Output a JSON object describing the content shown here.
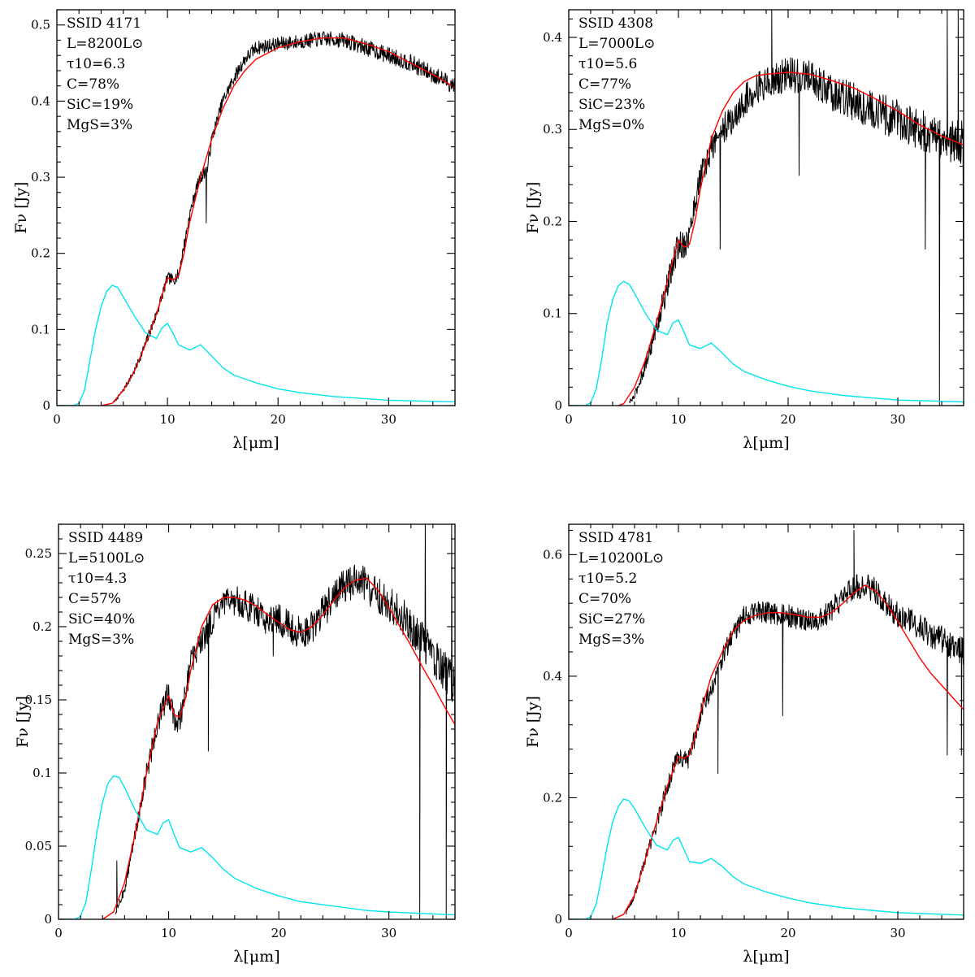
{
  "chart_data": [
    {
      "type": "line",
      "panel": "top-left",
      "xlabel": "λ[μm]",
      "ylabel": "Fν [Jy]",
      "xlim": [
        0,
        36
      ],
      "ylim": [
        0,
        0.52
      ],
      "xticks": [
        0,
        10,
        20,
        30
      ],
      "yticks": [
        0,
        0.1,
        0.2,
        0.3,
        0.4,
        0.5
      ],
      "ytick_labels": [
        "0",
        "0.1",
        "0.2",
        "0.3",
        "0.4",
        "0.5"
      ],
      "annotations": [
        "SSID 4171",
        "L=8200L⊙",
        "τ10=6.3",
        "C=78%",
        "SiC=19%",
        "MgS=3%"
      ],
      "series": [
        {
          "color": "#000000",
          "noise": 0.006,
          "spikes": [
            [
              13.5,
              0.24
            ]
          ],
          "x": [
            5.2,
            6,
            7,
            8,
            9,
            10,
            10.5,
            11,
            11.5,
            12,
            12.5,
            13,
            13.3,
            13.6,
            14,
            15,
            16,
            17,
            18,
            20,
            22,
            24,
            26,
            28,
            30,
            32,
            34,
            36
          ],
          "y": [
            0.005,
            0.02,
            0.045,
            0.08,
            0.12,
            0.168,
            0.165,
            0.172,
            0.21,
            0.25,
            0.28,
            0.3,
            0.305,
            0.31,
            0.35,
            0.4,
            0.43,
            0.455,
            0.47,
            0.475,
            0.478,
            0.482,
            0.48,
            0.47,
            0.46,
            0.45,
            0.435,
            0.42
          ]
        },
        {
          "color": "#ff0000",
          "noise": 0,
          "x": [
            4,
            5,
            6,
            7,
            8,
            9,
            10,
            10.5,
            11,
            11.5,
            12,
            13,
            14,
            15,
            16,
            17,
            18,
            20,
            22,
            24,
            26,
            28,
            30,
            32,
            34,
            36
          ],
          "y": [
            0,
            0.003,
            0.02,
            0.045,
            0.08,
            0.12,
            0.168,
            0.165,
            0.17,
            0.2,
            0.24,
            0.3,
            0.35,
            0.39,
            0.42,
            0.44,
            0.455,
            0.47,
            0.478,
            0.483,
            0.483,
            0.475,
            0.465,
            0.45,
            0.435,
            0.418
          ]
        },
        {
          "color": "#00e5ee",
          "noise": 0,
          "x": [
            0,
            1.5,
            2,
            2.5,
            3,
            3.5,
            4,
            4.5,
            5,
            5.5,
            6,
            7,
            8,
            9,
            9.5,
            10,
            10.5,
            11,
            12,
            13,
            14,
            15,
            16,
            18,
            20,
            22,
            25,
            28,
            30,
            33,
            36
          ],
          "y": [
            0,
            0,
            0.003,
            0.02,
            0.06,
            0.1,
            0.13,
            0.15,
            0.158,
            0.155,
            0.143,
            0.118,
            0.096,
            0.088,
            0.102,
            0.108,
            0.095,
            0.08,
            0.073,
            0.08,
            0.065,
            0.05,
            0.04,
            0.03,
            0.022,
            0.017,
            0.012,
            0.009,
            0.007,
            0.006,
            0.005
          ]
        }
      ]
    },
    {
      "type": "line",
      "panel": "top-right",
      "xlabel": "λ[μm]",
      "ylabel": "Fν [Jy]",
      "xlim": [
        0,
        36
      ],
      "ylim": [
        0,
        0.43
      ],
      "xticks": [
        0,
        10,
        20,
        30
      ],
      "yticks": [
        0,
        0.1,
        0.2,
        0.3,
        0.4
      ],
      "ytick_labels": [
        "0",
        "0.1",
        "0.2",
        "0.3",
        "0.4"
      ],
      "annotations": [
        "SSID 4308",
        "L=7000L⊙",
        "τ10=5.6",
        "C=77%",
        "SiC=23%",
        "MgS=0%"
      ],
      "series": [
        {
          "color": "#000000",
          "noise": 0.012,
          "spikes": [
            [
              13.8,
              0.17
            ],
            [
              18.5,
              0.43
            ],
            [
              21,
              0.25
            ],
            [
              32.5,
              0.17
            ],
            [
              33.8,
              0.0
            ],
            [
              34.5,
              0.43
            ],
            [
              35.5,
              0.43
            ],
            [
              36,
              0.04
            ]
          ],
          "x": [
            5.5,
            6,
            7,
            8,
            9,
            10,
            10.5,
            11,
            11.5,
            12,
            12.5,
            13,
            14,
            15,
            16,
            17,
            18,
            20,
            22,
            24,
            26,
            28,
            30,
            32,
            34,
            36
          ],
          "y": [
            0.003,
            0.01,
            0.045,
            0.085,
            0.13,
            0.175,
            0.175,
            0.185,
            0.22,
            0.25,
            0.26,
            0.28,
            0.3,
            0.31,
            0.33,
            0.345,
            0.35,
            0.36,
            0.355,
            0.34,
            0.33,
            0.32,
            0.31,
            0.3,
            0.29,
            0.285
          ]
        },
        {
          "color": "#ff0000",
          "noise": 0,
          "x": [
            4.5,
            5,
            6,
            7,
            8,
            9,
            10,
            10.5,
            11,
            11.5,
            12,
            13,
            14,
            15,
            16,
            17,
            18,
            20,
            22,
            24,
            26,
            28,
            30,
            32,
            34,
            36
          ],
          "y": [
            0,
            0.002,
            0.02,
            0.05,
            0.09,
            0.135,
            0.18,
            0.172,
            0.175,
            0.2,
            0.235,
            0.29,
            0.32,
            0.34,
            0.352,
            0.358,
            0.36,
            0.362,
            0.36,
            0.353,
            0.345,
            0.333,
            0.32,
            0.305,
            0.293,
            0.283
          ]
        },
        {
          "color": "#00e5ee",
          "noise": 0,
          "x": [
            0,
            1.5,
            2,
            2.5,
            3,
            3.5,
            4,
            4.5,
            5,
            5.5,
            6,
            7,
            8,
            9,
            9.5,
            10,
            10.5,
            11,
            12,
            13,
            14,
            15,
            16,
            18,
            20,
            22,
            25,
            28,
            30,
            33,
            36
          ],
          "y": [
            0,
            0,
            0.003,
            0.018,
            0.05,
            0.09,
            0.115,
            0.13,
            0.135,
            0.132,
            0.122,
            0.1,
            0.082,
            0.077,
            0.09,
            0.093,
            0.08,
            0.066,
            0.062,
            0.068,
            0.057,
            0.045,
            0.037,
            0.028,
            0.021,
            0.016,
            0.011,
            0.008,
            0.006,
            0.005,
            0.004
          ]
        }
      ]
    },
    {
      "type": "line",
      "panel": "bottom-left",
      "xlabel": "λ[μm]",
      "ylabel": "Fν [Jy]",
      "xlim": [
        0,
        36
      ],
      "ylim": [
        0,
        0.27
      ],
      "xticks": [
        0,
        10,
        20,
        30
      ],
      "yticks": [
        0,
        0.05,
        0.1,
        0.15,
        0.2,
        0.25
      ],
      "ytick_labels": [
        "0",
        "0.05",
        "0.1",
        "0.15",
        "0.2",
        "0.25"
      ],
      "annotations": [
        "SSID 4489",
        "L=5100L⊙",
        "τ10=4.3",
        "C=57%",
        "SiC=40%",
        "MgS=3%"
      ],
      "series": [
        {
          "color": "#000000",
          "noise": 0.007,
          "spikes": [
            [
              5.3,
              0.04
            ],
            [
              13.6,
              0.115
            ],
            [
              19.5,
              0.18
            ],
            [
              32.8,
              0.0
            ],
            [
              33.3,
              0.27
            ],
            [
              35.2,
              0.0
            ],
            [
              35.7,
              0.27
            ],
            [
              36,
              0.1
            ]
          ],
          "x": [
            5.2,
            6,
            7,
            8,
            9,
            10,
            10.5,
            11,
            11.5,
            12,
            13,
            14,
            15,
            16,
            17,
            18,
            19,
            20,
            21,
            22,
            23,
            24,
            25,
            26,
            27,
            28,
            29,
            30,
            31,
            32,
            33,
            34,
            35,
            36
          ],
          "y": [
            0.005,
            0.02,
            0.06,
            0.1,
            0.135,
            0.155,
            0.138,
            0.135,
            0.155,
            0.175,
            0.19,
            0.205,
            0.215,
            0.218,
            0.215,
            0.21,
            0.205,
            0.205,
            0.2,
            0.195,
            0.2,
            0.21,
            0.22,
            0.228,
            0.232,
            0.228,
            0.222,
            0.215,
            0.21,
            0.2,
            0.19,
            0.18,
            0.17,
            0.16
          ]
        },
        {
          "color": "#ff0000",
          "noise": 0,
          "x": [
            4,
            5,
            6,
            7,
            8,
            9,
            10,
            10.5,
            11,
            11.5,
            12,
            13,
            14,
            15,
            16,
            17,
            18,
            19,
            20,
            21,
            22,
            23,
            24,
            25,
            26,
            27,
            28,
            29,
            30,
            31,
            32,
            33,
            34,
            35,
            36
          ],
          "y": [
            0,
            0.005,
            0.025,
            0.06,
            0.1,
            0.135,
            0.153,
            0.14,
            0.138,
            0.15,
            0.17,
            0.2,
            0.215,
            0.22,
            0.22,
            0.218,
            0.214,
            0.208,
            0.203,
            0.198,
            0.196,
            0.2,
            0.208,
            0.218,
            0.227,
            0.232,
            0.233,
            0.225,
            0.213,
            0.2,
            0.187,
            0.173,
            0.16,
            0.146,
            0.133
          ]
        },
        {
          "color": "#00e5ee",
          "noise": 0,
          "x": [
            0,
            1.5,
            2,
            2.5,
            3,
            3.5,
            4,
            4.5,
            5,
            5.5,
            6,
            7,
            8,
            9,
            9.5,
            10,
            10.5,
            11,
            12,
            13,
            14,
            15,
            16,
            18,
            20,
            22,
            25,
            28,
            30,
            33,
            36
          ],
          "y": [
            0,
            0,
            0.002,
            0.012,
            0.035,
            0.06,
            0.08,
            0.093,
            0.098,
            0.097,
            0.09,
            0.074,
            0.061,
            0.058,
            0.066,
            0.068,
            0.058,
            0.049,
            0.046,
            0.049,
            0.042,
            0.034,
            0.028,
            0.021,
            0.016,
            0.012,
            0.009,
            0.006,
            0.005,
            0.004,
            0.003
          ]
        }
      ]
    },
    {
      "type": "line",
      "panel": "bottom-right",
      "xlabel": "λ[μm]",
      "ylabel": "Fν [Jy]",
      "xlim": [
        0,
        36
      ],
      "ylim": [
        0,
        0.65
      ],
      "xticks": [
        0,
        10,
        20,
        30
      ],
      "yticks": [
        0,
        0.2,
        0.4,
        0.6
      ],
      "ytick_labels": [
        "0",
        "0.2",
        "0.4",
        "0.6"
      ],
      "annotations": [
        "SSID 4781",
        "L=10200L⊙",
        "τ10=5.2",
        "C=70%",
        "SiC=27%",
        "MgS=3%"
      ],
      "series": [
        {
          "color": "#000000",
          "noise": 0.012,
          "spikes": [
            [
              13.6,
              0.24
            ],
            [
              19.5,
              0.335
            ],
            [
              26,
              0.64
            ],
            [
              34.5,
              0.27
            ],
            [
              35.8,
              0.27
            ]
          ],
          "x": [
            5.2,
            6,
            7,
            8,
            9,
            10,
            10.5,
            11,
            11.5,
            12,
            13,
            14,
            15,
            16,
            17,
            18,
            20,
            22,
            23,
            24,
            25,
            26,
            27,
            28,
            29,
            30,
            32,
            34,
            36
          ],
          "y": [
            0.01,
            0.04,
            0.1,
            0.155,
            0.22,
            0.27,
            0.26,
            0.265,
            0.3,
            0.34,
            0.38,
            0.43,
            0.47,
            0.5,
            0.505,
            0.505,
            0.5,
            0.49,
            0.495,
            0.51,
            0.53,
            0.545,
            0.55,
            0.54,
            0.52,
            0.5,
            0.48,
            0.46,
            0.44
          ]
        },
        {
          "color": "#ff0000",
          "noise": 0,
          "x": [
            4,
            5,
            6,
            7,
            8,
            9,
            10,
            10.5,
            11,
            11.5,
            12,
            13,
            14,
            15,
            16,
            17,
            18,
            19,
            20,
            21,
            22,
            23,
            24,
            25,
            26,
            27,
            28,
            29,
            30,
            31,
            32,
            33,
            34,
            35,
            36
          ],
          "y": [
            0,
            0.008,
            0.04,
            0.1,
            0.16,
            0.22,
            0.268,
            0.265,
            0.27,
            0.3,
            0.34,
            0.4,
            0.44,
            0.475,
            0.492,
            0.5,
            0.504,
            0.505,
            0.503,
            0.5,
            0.497,
            0.497,
            0.505,
            0.52,
            0.537,
            0.55,
            0.54,
            0.518,
            0.49,
            0.46,
            0.43,
            0.405,
            0.385,
            0.365,
            0.345
          ]
        },
        {
          "color": "#00e5ee",
          "noise": 0,
          "x": [
            0,
            1.5,
            2,
            2.5,
            3,
            3.5,
            4,
            4.5,
            5,
            5.5,
            6,
            7,
            8,
            9,
            9.5,
            10,
            10.5,
            11,
            12,
            13,
            14,
            15,
            16,
            18,
            20,
            22,
            25,
            28,
            30,
            33,
            36
          ],
          "y": [
            0,
            0,
            0.004,
            0.025,
            0.07,
            0.12,
            0.16,
            0.185,
            0.198,
            0.195,
            0.182,
            0.15,
            0.122,
            0.114,
            0.13,
            0.135,
            0.115,
            0.095,
            0.092,
            0.1,
            0.087,
            0.07,
            0.058,
            0.045,
            0.035,
            0.027,
            0.019,
            0.014,
            0.011,
            0.009,
            0.007
          ]
        }
      ]
    }
  ]
}
